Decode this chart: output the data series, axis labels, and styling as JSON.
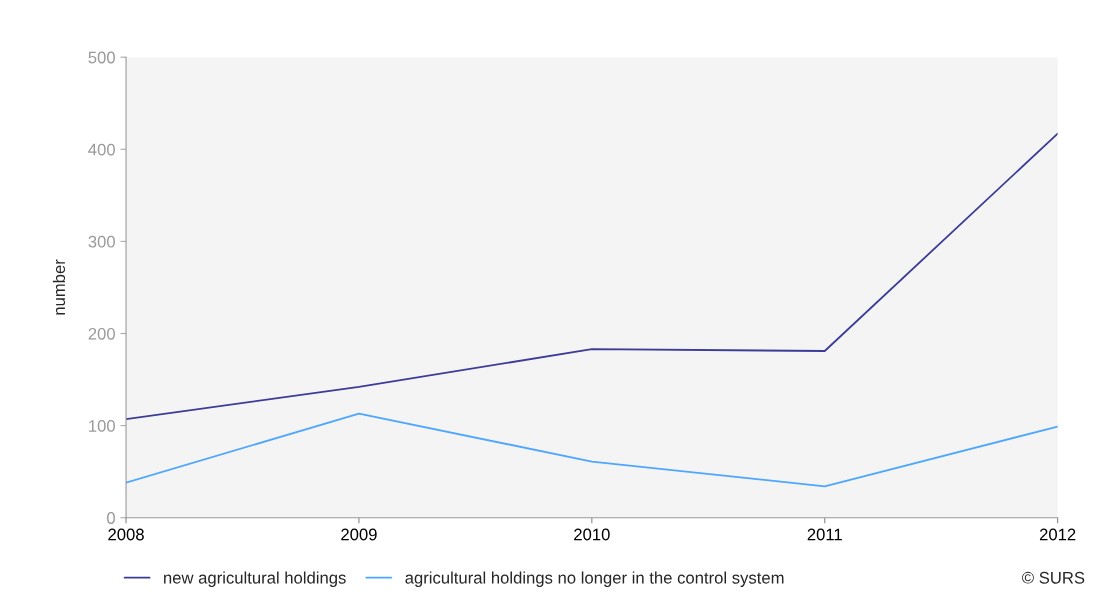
{
  "chart_data": {
    "type": "line",
    "ylabel": "number",
    "x": [
      2008,
      2009,
      2010,
      2011,
      2012
    ],
    "xlim": [
      2008,
      2012
    ],
    "xticks": [
      2008,
      2009,
      2010,
      2011,
      2012
    ],
    "ylim": [
      0,
      500
    ],
    "yticks": [
      0,
      100,
      200,
      300,
      400,
      500
    ],
    "series": [
      {
        "name": "new agricultural holdings",
        "color": "#3b3b98",
        "values": [
          107,
          142,
          183,
          181,
          417
        ]
      },
      {
        "name": "agricultural holdings no longer in the control system",
        "color": "#4da6ff",
        "values": [
          38,
          113,
          61,
          34,
          99
        ]
      }
    ],
    "grid": false,
    "legend": "bottom",
    "marker": "none",
    "line_style": "solid",
    "annotations": [
      "© SURS"
    ]
  }
}
